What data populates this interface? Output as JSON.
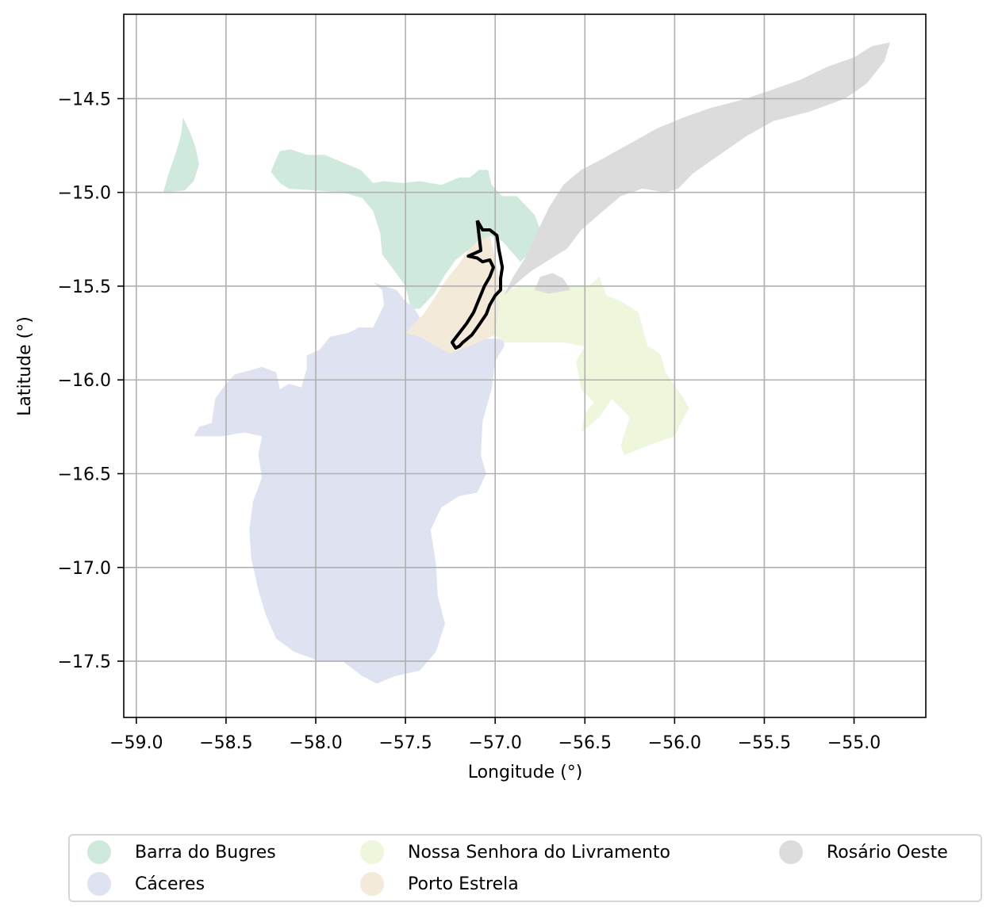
{
  "chart_data": {
    "type": "map",
    "xlabel": "Longitude (°)",
    "ylabel": "Latitude (°)",
    "xlim": [
      -59.07,
      -54.6
    ],
    "ylim": [
      -17.8,
      -14.05
    ],
    "xticks": [
      -59.0,
      -58.5,
      -58.0,
      -57.5,
      -57.0,
      -56.5,
      -56.0,
      -55.5,
      -55.0
    ],
    "yticks": [
      -14.5,
      -15.0,
      -15.5,
      -16.0,
      -16.5,
      -17.0,
      -17.5
    ],
    "xtick_labels": [
      "−59.0",
      "−58.5",
      "−58.0",
      "−57.5",
      "−57.0",
      "−56.5",
      "−56.0",
      "−55.5",
      "−55.0"
    ],
    "ytick_labels": [
      "−14.5",
      "−15.0",
      "−15.5",
      "−16.0",
      "−16.5",
      "−17.0",
      "−17.5"
    ],
    "grid": true,
    "legend_position": "bottom",
    "regions": [
      {
        "name": "Barra do Bugres",
        "color": "#cfeadc",
        "polygons": [
          [
            [
              -58.85,
              -15.0
            ],
            [
              -58.82,
              -14.9
            ],
            [
              -58.78,
              -14.79
            ],
            [
              -58.75,
              -14.69
            ],
            [
              -58.74,
              -14.6
            ],
            [
              -58.7,
              -14.68
            ],
            [
              -58.67,
              -14.76
            ],
            [
              -58.65,
              -14.85
            ],
            [
              -58.68,
              -14.94
            ],
            [
              -58.73,
              -14.99
            ],
            [
              -58.85,
              -15.0
            ]
          ],
          [
            [
              -58.25,
              -14.89
            ],
            [
              -58.22,
              -14.82
            ],
            [
              -58.2,
              -14.78
            ],
            [
              -58.14,
              -14.77
            ],
            [
              -58.05,
              -14.8
            ],
            [
              -57.95,
              -14.8
            ],
            [
              -57.85,
              -14.84
            ],
            [
              -57.75,
              -14.88
            ],
            [
              -57.68,
              -14.95
            ],
            [
              -57.62,
              -14.94
            ],
            [
              -57.52,
              -14.95
            ],
            [
              -57.42,
              -14.94
            ],
            [
              -57.3,
              -14.96
            ],
            [
              -57.2,
              -14.92
            ],
            [
              -57.14,
              -14.92
            ],
            [
              -57.09,
              -14.88
            ],
            [
              -57.04,
              -14.88
            ],
            [
              -57.02,
              -14.96
            ],
            [
              -56.96,
              -15.02
            ],
            [
              -56.88,
              -15.02
            ],
            [
              -56.82,
              -15.08
            ],
            [
              -56.78,
              -15.12
            ],
            [
              -56.74,
              -15.22
            ],
            [
              -56.78,
              -15.3
            ],
            [
              -56.86,
              -15.37
            ],
            [
              -56.96,
              -15.26
            ],
            [
              -57.03,
              -15.23
            ],
            [
              -57.06,
              -15.28
            ],
            [
              -57.1,
              -15.28
            ],
            [
              -57.14,
              -15.3
            ],
            [
              -57.22,
              -15.36
            ],
            [
              -57.28,
              -15.44
            ],
            [
              -57.34,
              -15.54
            ],
            [
              -57.42,
              -15.62
            ],
            [
              -57.47,
              -15.62
            ],
            [
              -57.5,
              -15.5
            ],
            [
              -57.56,
              -15.42
            ],
            [
              -57.63,
              -15.33
            ],
            [
              -57.64,
              -15.22
            ],
            [
              -57.68,
              -15.1
            ],
            [
              -57.74,
              -15.03
            ],
            [
              -57.85,
              -15.0
            ],
            [
              -58.0,
              -14.99
            ],
            [
              -58.15,
              -14.98
            ],
            [
              -58.2,
              -14.95
            ],
            [
              -58.25,
              -14.89
            ]
          ]
        ]
      },
      {
        "name": "Cáceres",
        "color": "#dfe3f1",
        "polygons": [
          [
            [
              -58.68,
              -16.3
            ],
            [
              -58.65,
              -16.25
            ],
            [
              -58.58,
              -16.23
            ],
            [
              -58.56,
              -16.1
            ],
            [
              -58.5,
              -16.02
            ],
            [
              -58.45,
              -15.97
            ],
            [
              -58.37,
              -15.95
            ],
            [
              -58.3,
              -15.93
            ],
            [
              -58.22,
              -15.96
            ],
            [
              -58.2,
              -16.05
            ],
            [
              -58.15,
              -16.02
            ],
            [
              -58.08,
              -16.04
            ],
            [
              -58.05,
              -15.94
            ],
            [
              -58.05,
              -15.87
            ],
            [
              -57.98,
              -15.84
            ],
            [
              -57.92,
              -15.77
            ],
            [
              -57.82,
              -15.75
            ],
            [
              -57.76,
              -15.72
            ],
            [
              -57.68,
              -15.72
            ],
            [
              -57.62,
              -15.6
            ],
            [
              -57.63,
              -15.52
            ],
            [
              -57.68,
              -15.48
            ],
            [
              -57.55,
              -15.52
            ],
            [
              -57.5,
              -15.58
            ],
            [
              -57.45,
              -15.62
            ],
            [
              -57.36,
              -15.76
            ],
            [
              -57.3,
              -15.8
            ],
            [
              -57.25,
              -15.82
            ],
            [
              -57.15,
              -15.82
            ],
            [
              -57.05,
              -15.78
            ],
            [
              -56.95,
              -15.78
            ],
            [
              -56.95,
              -15.82
            ],
            [
              -57.0,
              -15.9
            ],
            [
              -57.02,
              -16.05
            ],
            [
              -57.07,
              -16.22
            ],
            [
              -57.08,
              -16.4
            ],
            [
              -57.05,
              -16.5
            ],
            [
              -57.1,
              -16.6
            ],
            [
              -57.2,
              -16.62
            ],
            [
              -57.3,
              -16.68
            ],
            [
              -57.36,
              -16.8
            ],
            [
              -57.33,
              -16.98
            ],
            [
              -57.32,
              -17.15
            ],
            [
              -57.28,
              -17.3
            ],
            [
              -57.33,
              -17.45
            ],
            [
              -57.42,
              -17.55
            ],
            [
              -57.56,
              -17.58
            ],
            [
              -57.66,
              -17.62
            ],
            [
              -57.74,
              -17.58
            ],
            [
              -57.85,
              -17.5
            ],
            [
              -57.98,
              -17.5
            ],
            [
              -58.12,
              -17.45
            ],
            [
              -58.22,
              -17.38
            ],
            [
              -58.28,
              -17.25
            ],
            [
              -58.32,
              -17.12
            ],
            [
              -58.36,
              -16.95
            ],
            [
              -58.37,
              -16.8
            ],
            [
              -58.35,
              -16.65
            ],
            [
              -58.3,
              -16.52
            ],
            [
              -58.32,
              -16.4
            ],
            [
              -58.3,
              -16.3
            ],
            [
              -58.4,
              -16.28
            ],
            [
              -58.52,
              -16.3
            ],
            [
              -58.68,
              -16.3
            ]
          ]
        ]
      },
      {
        "name": "Nossa Senhora do Livramento",
        "color": "#eef6dc",
        "polygons": [
          [
            [
              -57.02,
              -15.6
            ],
            [
              -57.0,
              -15.55
            ],
            [
              -56.95,
              -15.52
            ],
            [
              -56.85,
              -15.5
            ],
            [
              -56.75,
              -15.5
            ],
            [
              -56.6,
              -15.5
            ],
            [
              -56.48,
              -15.5
            ],
            [
              -56.42,
              -15.45
            ],
            [
              -56.38,
              -15.55
            ],
            [
              -56.3,
              -15.58
            ],
            [
              -56.2,
              -15.64
            ],
            [
              -56.18,
              -15.72
            ],
            [
              -56.15,
              -15.82
            ],
            [
              -56.08,
              -15.86
            ],
            [
              -56.05,
              -15.96
            ],
            [
              -56.02,
              -16.0
            ],
            [
              -55.95,
              -16.1
            ],
            [
              -55.92,
              -16.15
            ],
            [
              -55.96,
              -16.22
            ],
            [
              -56.0,
              -16.3
            ],
            [
              -56.15,
              -16.35
            ],
            [
              -56.28,
              -16.4
            ],
            [
              -56.3,
              -16.35
            ],
            [
              -56.25,
              -16.2
            ],
            [
              -56.3,
              -16.15
            ],
            [
              -56.35,
              -16.1
            ],
            [
              -56.42,
              -16.2
            ],
            [
              -56.52,
              -16.28
            ],
            [
              -56.5,
              -16.18
            ],
            [
              -56.45,
              -16.12
            ],
            [
              -56.52,
              -16.05
            ],
            [
              -56.55,
              -15.9
            ],
            [
              -56.5,
              -15.82
            ],
            [
              -56.62,
              -15.8
            ],
            [
              -56.8,
              -15.8
            ],
            [
              -56.95,
              -15.8
            ],
            [
              -57.02,
              -15.75
            ],
            [
              -57.02,
              -15.6
            ]
          ]
        ]
      },
      {
        "name": "Porto Estrela",
        "color": "#f4ead9",
        "polygons": [
          [
            [
              -57.03,
              -15.23
            ],
            [
              -57.1,
              -15.26
            ],
            [
              -57.16,
              -15.32
            ],
            [
              -57.2,
              -15.38
            ],
            [
              -57.26,
              -15.45
            ],
            [
              -57.33,
              -15.55
            ],
            [
              -57.4,
              -15.65
            ],
            [
              -57.5,
              -15.75
            ],
            [
              -57.42,
              -15.77
            ],
            [
              -57.33,
              -15.82
            ],
            [
              -57.25,
              -15.86
            ],
            [
              -57.15,
              -15.82
            ],
            [
              -57.05,
              -15.78
            ],
            [
              -57.0,
              -15.76
            ],
            [
              -56.98,
              -15.62
            ],
            [
              -56.98,
              -15.45
            ],
            [
              -57.0,
              -15.35
            ],
            [
              -57.03,
              -15.23
            ]
          ]
        ]
      },
      {
        "name": "Rosário Oeste",
        "color": "#dcdcdc",
        "polygons": [
          [
            [
              -56.95,
              -15.55
            ],
            [
              -56.9,
              -15.45
            ],
            [
              -56.82,
              -15.33
            ],
            [
              -56.76,
              -15.2
            ],
            [
              -56.7,
              -15.08
            ],
            [
              -56.62,
              -14.96
            ],
            [
              -56.52,
              -14.88
            ],
            [
              -56.4,
              -14.82
            ],
            [
              -56.25,
              -14.74
            ],
            [
              -56.1,
              -14.66
            ],
            [
              -55.95,
              -14.6
            ],
            [
              -55.8,
              -14.55
            ],
            [
              -55.6,
              -14.5
            ],
            [
              -55.45,
              -14.45
            ],
            [
              -55.3,
              -14.4
            ],
            [
              -55.15,
              -14.33
            ],
            [
              -55.0,
              -14.28
            ],
            [
              -54.9,
              -14.22
            ],
            [
              -54.8,
              -14.2
            ],
            [
              -54.83,
              -14.3
            ],
            [
              -54.93,
              -14.42
            ],
            [
              -55.05,
              -14.5
            ],
            [
              -55.25,
              -14.57
            ],
            [
              -55.45,
              -14.62
            ],
            [
              -55.6,
              -14.7
            ],
            [
              -55.75,
              -14.8
            ],
            [
              -55.9,
              -14.9
            ],
            [
              -55.98,
              -14.98
            ],
            [
              -56.05,
              -15.0
            ],
            [
              -56.18,
              -14.98
            ],
            [
              -56.3,
              -15.02
            ],
            [
              -56.4,
              -15.1
            ],
            [
              -56.52,
              -15.2
            ],
            [
              -56.6,
              -15.3
            ],
            [
              -56.7,
              -15.36
            ],
            [
              -56.8,
              -15.42
            ],
            [
              -56.9,
              -15.5
            ],
            [
              -56.95,
              -15.55
            ]
          ],
          [
            [
              -56.78,
              -15.52
            ],
            [
              -56.75,
              -15.45
            ],
            [
              -56.68,
              -15.43
            ],
            [
              -56.62,
              -15.46
            ],
            [
              -56.58,
              -15.52
            ],
            [
              -56.7,
              -15.54
            ],
            [
              -56.78,
              -15.52
            ]
          ]
        ]
      }
    ],
    "outline": {
      "color": "#000000",
      "points": [
        [
          -57.1,
          -15.15
        ],
        [
          -57.07,
          -15.2
        ],
        [
          -57.03,
          -15.2
        ],
        [
          -56.99,
          -15.23
        ],
        [
          -56.98,
          -15.3
        ],
        [
          -56.96,
          -15.4
        ],
        [
          -56.97,
          -15.46
        ],
        [
          -56.97,
          -15.52
        ],
        [
          -57.0,
          -15.55
        ],
        [
          -57.03,
          -15.6
        ],
        [
          -57.05,
          -15.65
        ],
        [
          -57.1,
          -15.72
        ],
        [
          -57.13,
          -15.76
        ],
        [
          -57.18,
          -15.8
        ],
        [
          -57.2,
          -15.82
        ],
        [
          -57.22,
          -15.83
        ],
        [
          -57.24,
          -15.8
        ],
        [
          -57.2,
          -15.75
        ],
        [
          -57.16,
          -15.7
        ],
        [
          -57.12,
          -15.64
        ],
        [
          -57.09,
          -15.57
        ],
        [
          -57.06,
          -15.5
        ],
        [
          -57.03,
          -15.45
        ],
        [
          -57.01,
          -15.4
        ],
        [
          -57.03,
          -15.36
        ],
        [
          -57.07,
          -15.37
        ],
        [
          -57.1,
          -15.35
        ],
        [
          -57.15,
          -15.34
        ],
        [
          -57.08,
          -15.31
        ],
        [
          -57.1,
          -15.15
        ]
      ]
    }
  },
  "legend": {
    "items": [
      {
        "label": "Barra do Bugres",
        "color": "#cfeadc"
      },
      {
        "label": "Cáceres",
        "color": "#dfe3f1"
      },
      {
        "label": "Nossa Senhora do Livramento",
        "color": "#eef6dc"
      },
      {
        "label": "Porto Estrela",
        "color": "#f4ead9"
      },
      {
        "label": "Rosário Oeste",
        "color": "#dcdcdc"
      }
    ]
  }
}
